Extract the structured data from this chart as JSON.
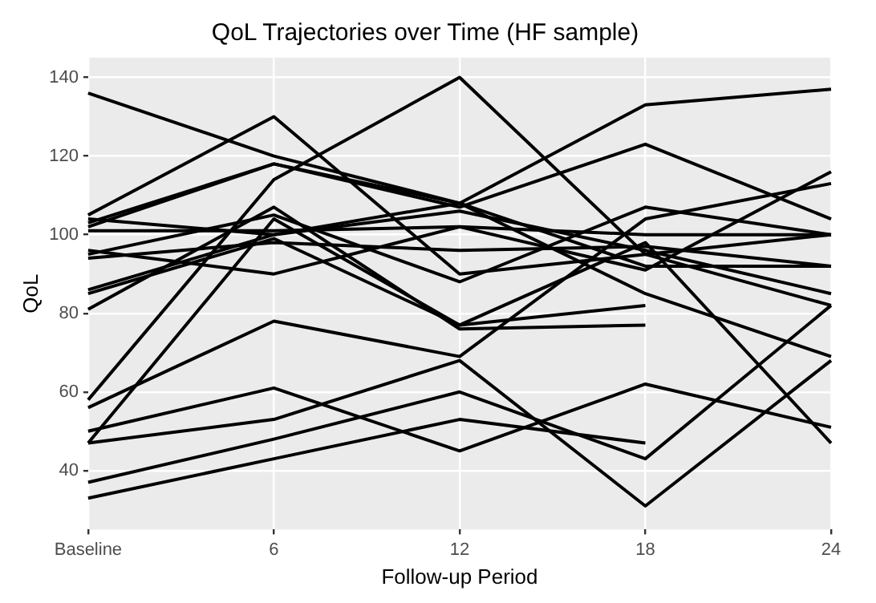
{
  "chart_data": {
    "type": "line",
    "title": "QoL Trajectories over Time (HF sample)",
    "xlabel": "Follow-up Period",
    "ylabel": "QoL",
    "categories": [
      "Baseline",
      "6",
      "12",
      "18",
      "24"
    ],
    "ylim": [
      25,
      145
    ],
    "yticks": [
      40,
      60,
      80,
      100,
      120,
      140
    ],
    "grid": true,
    "legend": false,
    "marker": "none",
    "line_style": "solid",
    "series": [
      {
        "color": "#000000",
        "values": [
          136,
          120,
          108,
          92,
          92
        ]
      },
      {
        "color": "#000000",
        "values": [
          105,
          130,
          90,
          95,
          100
        ]
      },
      {
        "color": "#000000",
        "values": [
          58,
          114,
          140,
          95,
          82
        ]
      },
      {
        "color": "#000000",
        "values": [
          103,
          118,
          108,
          133,
          137
        ]
      },
      {
        "color": "#000000",
        "values": [
          102,
          118,
          107,
          123,
          104
        ]
      },
      {
        "color": "#000000",
        "values": [
          95,
          105,
          88,
          107,
          100
        ]
      },
      {
        "color": "#000000",
        "values": [
          56,
          78,
          69,
          104,
          113
        ]
      },
      {
        "color": "#000000",
        "values": [
          50,
          61,
          45,
          62,
          51
        ]
      },
      {
        "color": "#000000",
        "values": [
          47,
          53,
          68,
          31,
          68
        ]
      },
      {
        "color": "#000000",
        "values": [
          37,
          48,
          60,
          43,
          82
        ]
      },
      {
        "color": "#000000",
        "values": [
          33,
          43,
          53,
          47,
          null
        ]
      },
      {
        "color": "#000000",
        "values": [
          81,
          107,
          76,
          77,
          null
        ]
      },
      {
        "color": "#000000",
        "values": [
          47,
          104,
          77,
          82,
          null
        ]
      },
      {
        "color": "#000000",
        "values": [
          86,
          100,
          108,
          85,
          69
        ]
      },
      {
        "color": "#000000",
        "values": [
          85,
          99,
          77,
          98,
          47
        ]
      },
      {
        "color": "#000000",
        "values": [
          101,
          101,
          102,
          100,
          100
        ]
      },
      {
        "color": "#000000",
        "values": [
          94,
          98,
          96,
          97,
          92
        ]
      },
      {
        "color": "#000000",
        "values": [
          96,
          90,
          102,
          91,
          116
        ]
      },
      {
        "color": "#000000",
        "values": [
          104,
          100,
          106,
          96,
          85
        ]
      }
    ]
  }
}
